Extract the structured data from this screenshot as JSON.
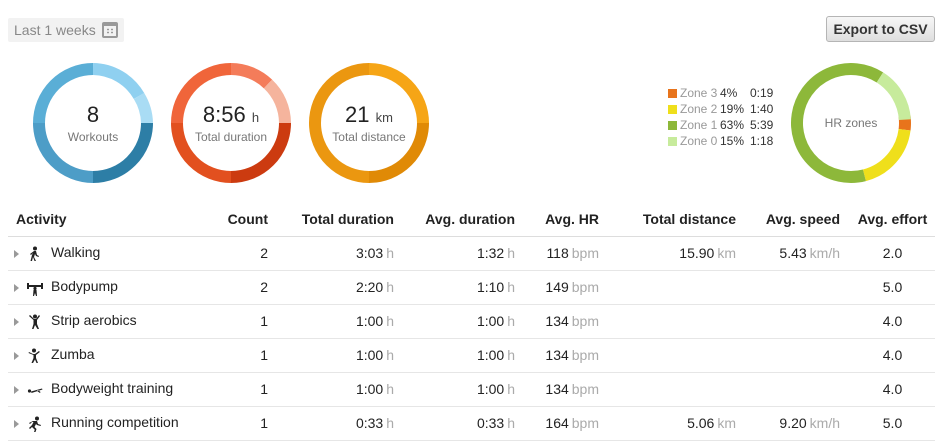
{
  "period": {
    "label": "Last 1 weeks",
    "icon": "calendar-icon"
  },
  "export": {
    "label": "Export to CSV"
  },
  "summary": {
    "workouts": {
      "value": "8",
      "label": "Workouts"
    },
    "duration": {
      "value": "8:56",
      "unit": "h",
      "label": "Total duration"
    },
    "distance": {
      "value": "21",
      "unit": "km",
      "label": "Total distance"
    }
  },
  "hr_zones": {
    "label": "HR zones",
    "zones": [
      {
        "name": "Zone 3",
        "pct": "4%",
        "time": "0:19",
        "fraction": 0.04,
        "color": "#e8741c"
      },
      {
        "name": "Zone 2",
        "pct": "19%",
        "time": "1:40",
        "fraction": 0.19,
        "color": "#efdf1b"
      },
      {
        "name": "Zone 1",
        "pct": "63%",
        "time": "5:39",
        "fraction": 0.63,
        "color": "#8db83a"
      },
      {
        "name": "Zone 0",
        "pct": "15%",
        "time": "1:18",
        "fraction": 0.15,
        "color": "#c7eb9c"
      }
    ]
  },
  "table": {
    "headers": [
      "Activity",
      "Count",
      "Total duration",
      "Avg. duration",
      "Avg. HR",
      "Total distance",
      "Avg. speed",
      "Avg. effort"
    ],
    "units": {
      "duration": "h",
      "hr": "bpm",
      "distance": "km",
      "speed": "km/h"
    },
    "rows": [
      {
        "icon": "walking-icon",
        "name": "Walking",
        "count": "2",
        "total": "3:03",
        "avg": "1:32",
        "hr": "118",
        "dist": "15.90",
        "speed": "5.43",
        "effort": "2.0"
      },
      {
        "icon": "bodypump-icon",
        "name": "Bodypump",
        "count": "2",
        "total": "2:20",
        "avg": "1:10",
        "hr": "149",
        "dist": "",
        "speed": "",
        "effort": "5.0"
      },
      {
        "icon": "strip-aerobics-icon",
        "name": "Strip aerobics",
        "count": "1",
        "total": "1:00",
        "avg": "1:00",
        "hr": "134",
        "dist": "",
        "speed": "",
        "effort": "4.0"
      },
      {
        "icon": "zumba-icon",
        "name": "Zumba",
        "count": "1",
        "total": "1:00",
        "avg": "1:00",
        "hr": "134",
        "dist": "",
        "speed": "",
        "effort": "4.0"
      },
      {
        "icon": "bodyweight-training-icon",
        "name": "Bodyweight training",
        "count": "1",
        "total": "1:00",
        "avg": "1:00",
        "hr": "134",
        "dist": "",
        "speed": "",
        "effort": "4.0"
      },
      {
        "icon": "running-icon",
        "name": "Running competition",
        "count": "1",
        "total": "0:33",
        "avg": "0:33",
        "hr": "164",
        "dist": "5.06",
        "speed": "9.20",
        "effort": "5.0"
      }
    ]
  }
}
